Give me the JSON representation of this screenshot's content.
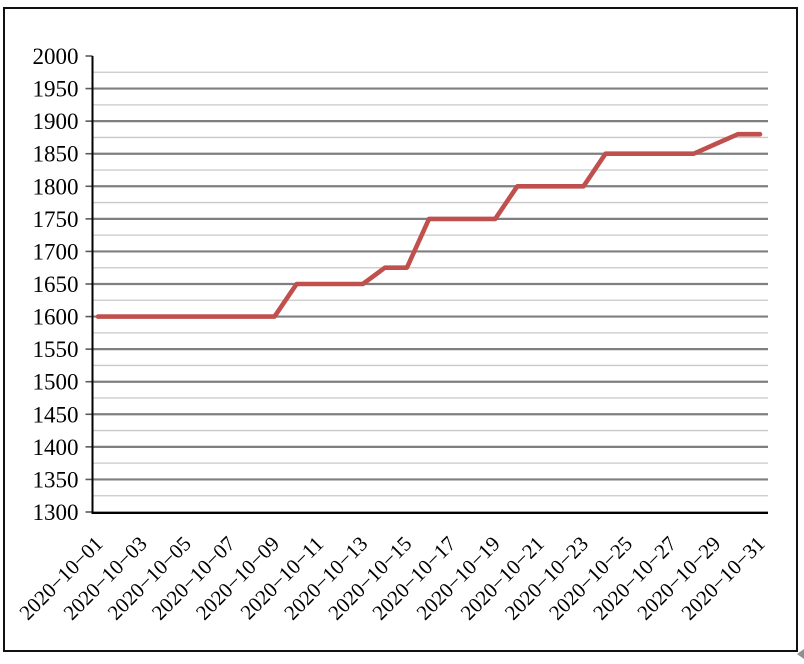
{
  "chart_data": {
    "type": "line",
    "title": "",
    "legend": "none",
    "grid": "horizontal major every 50, minor every 25",
    "ylim": [
      1300,
      2000
    ],
    "y_major_step": 50,
    "y_minor_step": 25,
    "y_tick_labels": [
      "2000",
      "1950",
      "1900",
      "1850",
      "1800",
      "1750",
      "1700",
      "1650",
      "1600",
      "1550",
      "1500",
      "1450",
      "1400",
      "1350",
      "1300"
    ],
    "x_tick_labels": [
      "2020−10−01",
      "2020−10−03",
      "2020−10−05",
      "2020−10−07",
      "2020−10−09",
      "2020−10−11",
      "2020−10−13",
      "2020−10−15",
      "2020−10−17",
      "2020−10−19",
      "2020−10−21",
      "2020−10−23",
      "2020−10−25",
      "2020−10−27",
      "2020−10−29",
      "2020−10−31"
    ],
    "dates": [
      "2020-10-01",
      "2020-10-02",
      "2020-10-03",
      "2020-10-04",
      "2020-10-05",
      "2020-10-06",
      "2020-10-07",
      "2020-10-08",
      "2020-10-09",
      "2020-10-10",
      "2020-10-11",
      "2020-10-12",
      "2020-10-13",
      "2020-10-14",
      "2020-10-15",
      "2020-10-16",
      "2020-10-17",
      "2020-10-18",
      "2020-10-19",
      "2020-10-20",
      "2020-10-21",
      "2020-10-22",
      "2020-10-23",
      "2020-10-24",
      "2020-10-25",
      "2020-10-26",
      "2020-10-27",
      "2020-10-28",
      "2020-10-29",
      "2020-10-30",
      "2020-10-31"
    ],
    "values": [
      1600,
      1600,
      1600,
      1600,
      1600,
      1600,
      1600,
      1600,
      1600,
      1650,
      1650,
      1650,
      1650,
      1675,
      1675,
      1750,
      1750,
      1750,
      1750,
      1800,
      1800,
      1800,
      1800,
      1850,
      1850,
      1850,
      1850,
      1850,
      1865,
      1880,
      1880
    ],
    "line_color": "#C0504D",
    "major_grid_color": "#7F7F7F",
    "minor_grid_color": "#C8C8C8",
    "axis_color": "#000000",
    "background": "#FFFFFF"
  },
  "decorations": {
    "corner_marker": "small gray left-pointing arrow at bottom-right edge"
  }
}
